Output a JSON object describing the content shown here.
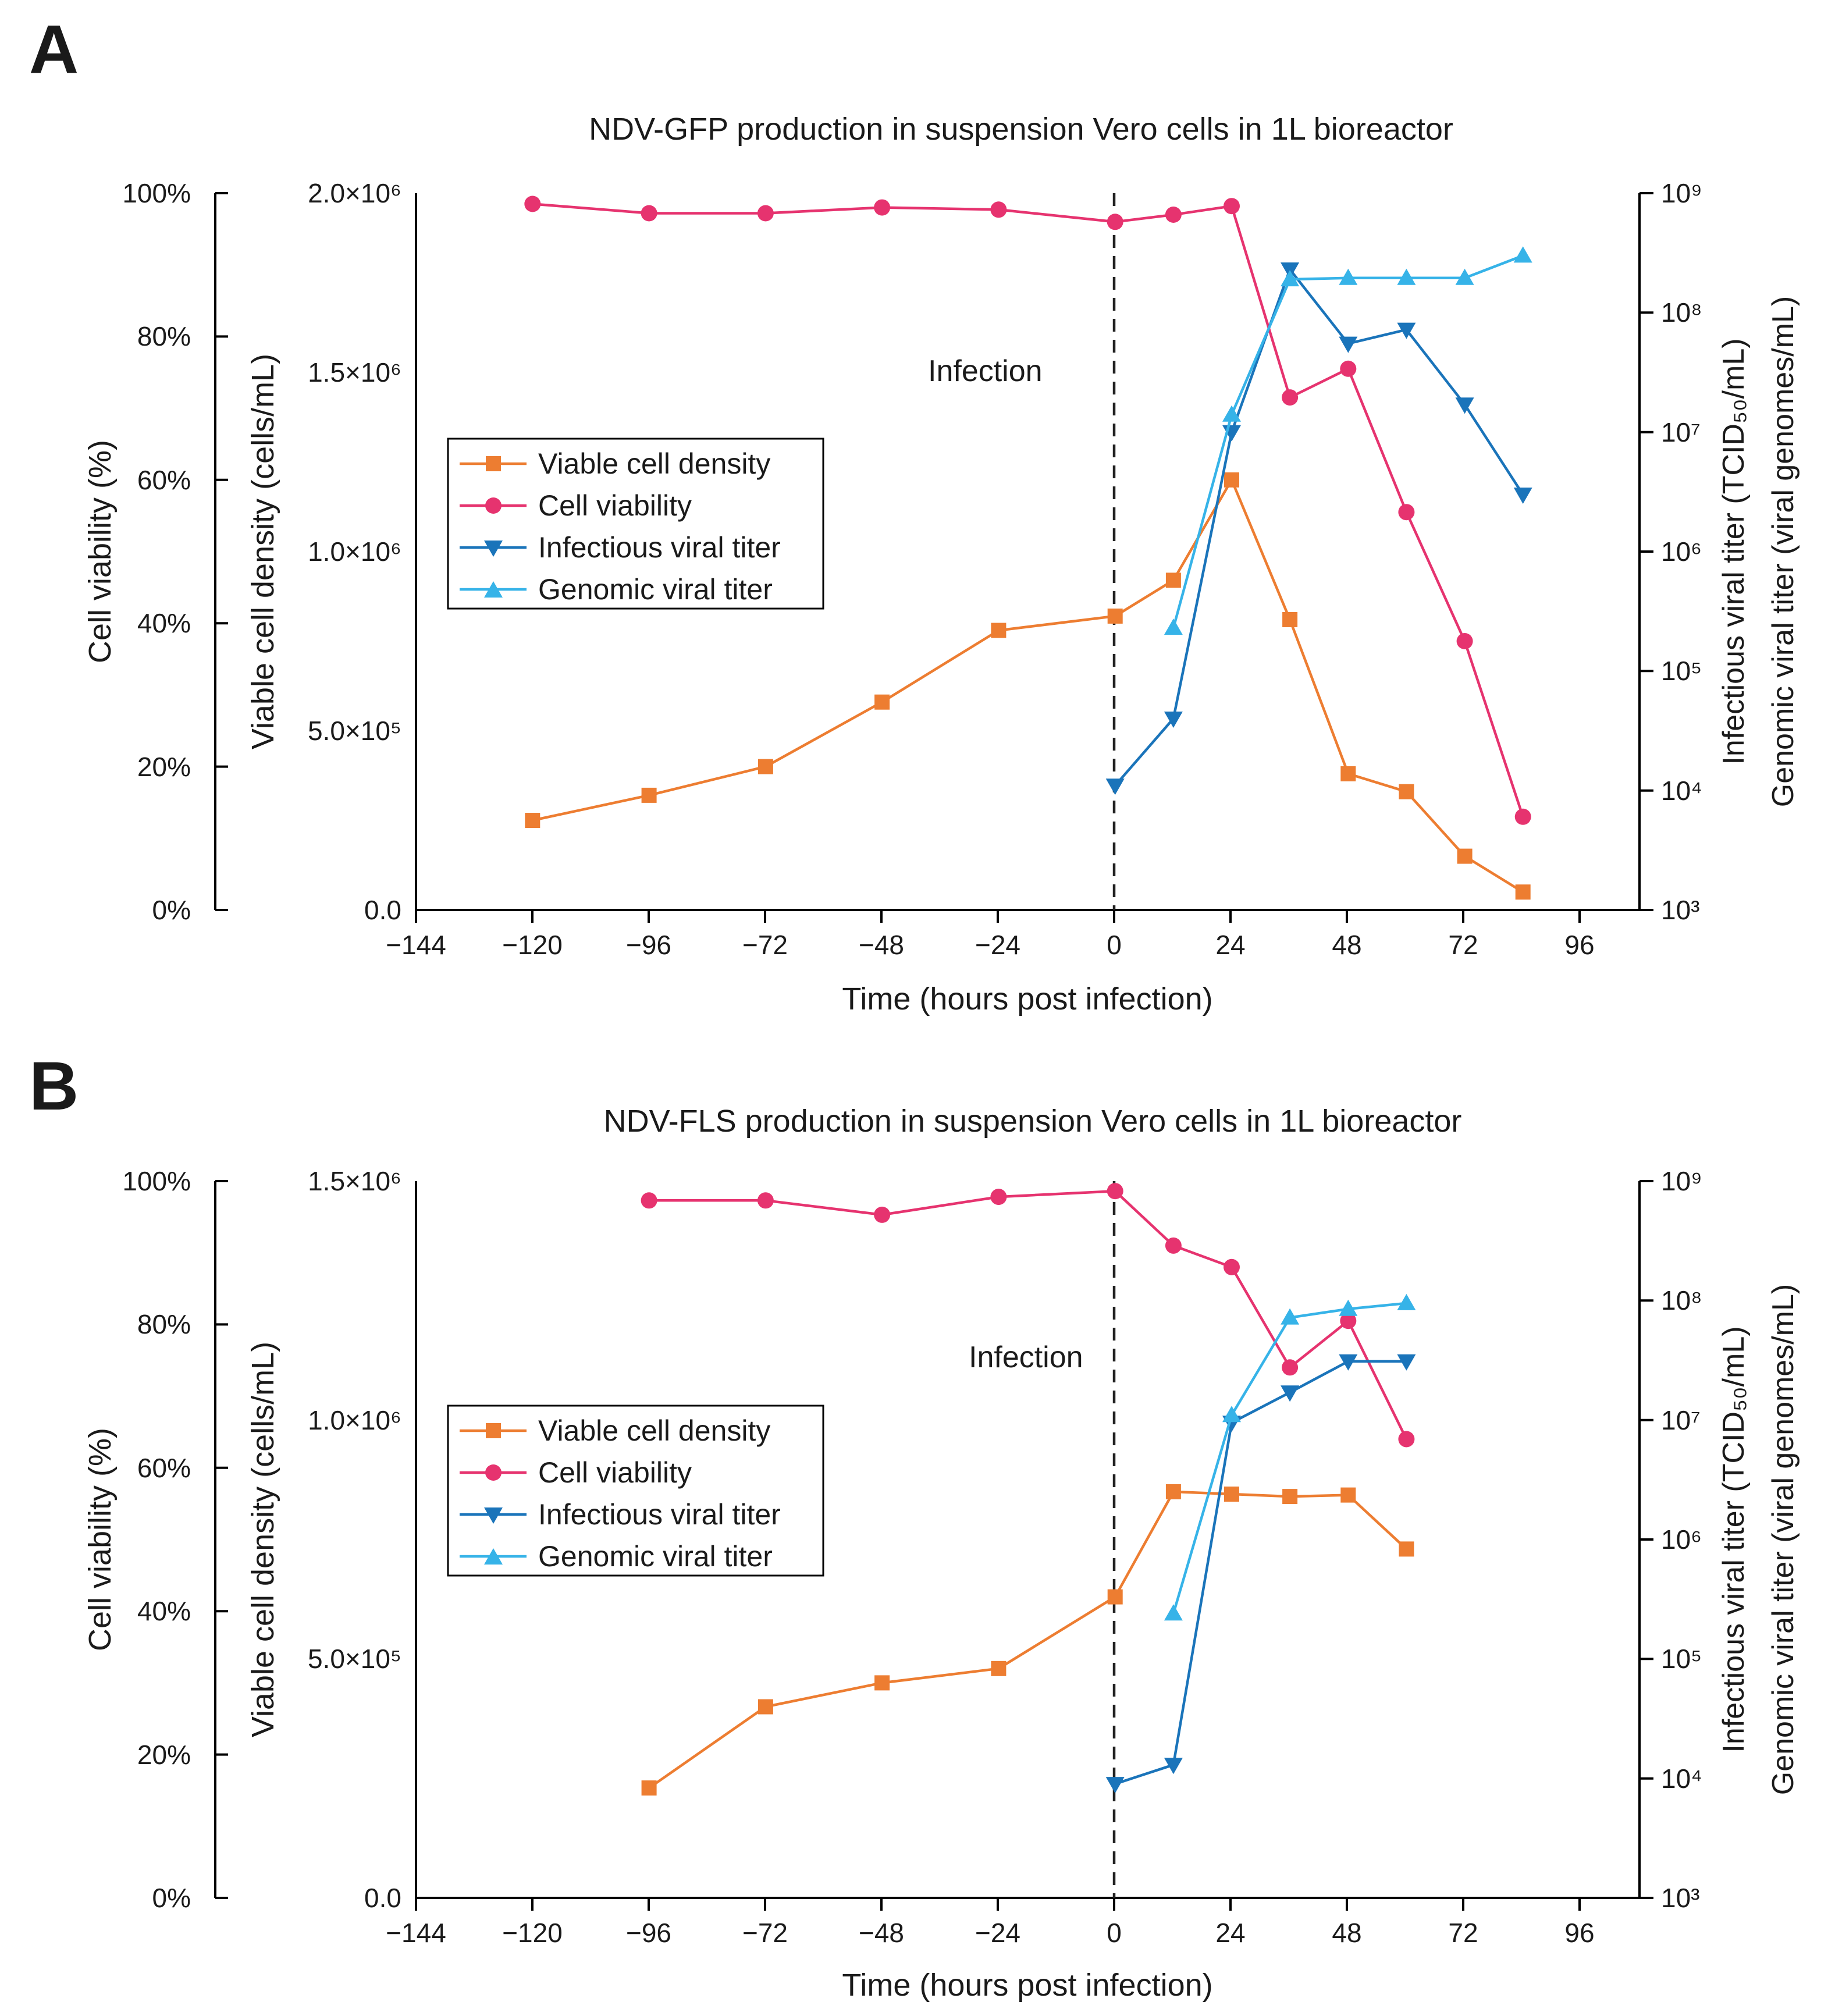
{
  "figure": {
    "panels": [
      {
        "panel_letter": "A",
        "title": "NDV-GFP production in suspension Vero cells in 1L bioreactor",
        "axis_left_outer": {
          "label": "Cell viability (%)",
          "ticks": [
            "0%",
            "20%",
            "40%",
            "60%",
            "80%",
            "100%"
          ]
        },
        "axis_left_inner": {
          "label": "Viable cell density (cells/mL)",
          "ticks": [
            "0.0",
            "5.0×10⁵",
            "1.0×10⁶",
            "1.5×10⁶",
            "2.0×10⁶"
          ]
        },
        "axis_right": {
          "label_line1": "Infectious viral titer (TCID₅₀/mL)",
          "label_line2": "Genomic viral titer (viral genomes/mL)",
          "ticks": [
            "10³",
            "10⁴",
            "10⁵",
            "10⁶",
            "10⁷",
            "10⁸",
            "10⁹"
          ]
        },
        "x_axis": {
          "label": "Time (hours post infection)",
          "ticks": [
            "−144",
            "−120",
            "−96",
            "−72",
            "−48",
            "−24",
            "0",
            "24",
            "48",
            "72",
            "96"
          ]
        },
        "annotation": "Infection",
        "legend": [
          "Viable cell density",
          "Cell viability",
          "Infectious viral titer",
          "Genomic viral titer"
        ]
      },
      {
        "panel_letter": "B",
        "title": "NDV-FLS production in suspension Vero cells in 1L bioreactor",
        "axis_left_outer": {
          "label": "Cell viability (%)",
          "ticks": [
            "0%",
            "20%",
            "40%",
            "60%",
            "80%",
            "100%"
          ]
        },
        "axis_left_inner": {
          "label": "Viable cell density (cells/mL)",
          "ticks": [
            "0.0",
            "5.0×10⁵",
            "1.0×10⁶",
            "1.5×10⁶"
          ]
        },
        "axis_right": {
          "label_line1": "Infectious viral titer (TCID₅₀/mL)",
          "label_line2": "Genomic viral titer (viral genomes/mL)",
          "ticks": [
            "10³",
            "10⁴",
            "10⁵",
            "10⁶",
            "10⁷",
            "10⁸",
            "10⁹"
          ]
        },
        "x_axis": {
          "label": "Time (hours post infection)",
          "ticks": [
            "−144",
            "−120",
            "−96",
            "−72",
            "−48",
            "−24",
            "0",
            "24",
            "48",
            "72",
            "96"
          ]
        },
        "annotation": "Infection",
        "legend": [
          "Viable cell density",
          "Cell viability",
          "Infectious viral titer",
          "Genomic viral titer"
        ]
      }
    ]
  },
  "chart_data": [
    {
      "type": "line",
      "title": "NDV-GFP production in suspension Vero cells in 1L bioreactor",
      "xlabel": "Time (hours post infection)",
      "xlim": [
        -144,
        108
      ],
      "xticks": [
        -144,
        -120,
        -96,
        -72,
        -48,
        -24,
        0,
        24,
        48,
        72,
        96
      ],
      "vline_x": 0,
      "annotation": "Infection",
      "axes": {
        "viability": {
          "label": "Cell viability (%)",
          "ylim": [
            0,
            100
          ],
          "scale": "linear"
        },
        "density": {
          "label": "Viable cell density (cells/mL)",
          "ylim": [
            0,
            2000000
          ],
          "scale": "linear"
        },
        "titer": {
          "label": "Infectious viral titer (TCID50/mL) / Genomic viral titer (viral genomes/mL)",
          "ylim": [
            1000,
            1000000000
          ],
          "scale": "log"
        }
      },
      "series": [
        {
          "name": "Viable cell density",
          "axis": "density",
          "color": "#ED7D31",
          "marker": "square",
          "x": [
            -120,
            -96,
            -72,
            -48,
            -24,
            0,
            12,
            24,
            36,
            48,
            60,
            72,
            84
          ],
          "values": [
            250000,
            320000,
            400000,
            580000,
            780000,
            820000,
            920000,
            1200000,
            810000,
            380000,
            330000,
            150000,
            50000
          ]
        },
        {
          "name": "Cell viability",
          "axis": "viability",
          "color": "#E6336F",
          "marker": "circle",
          "x": [
            -120,
            -96,
            -72,
            -48,
            -24,
            0,
            12,
            24,
            36,
            48,
            60,
            72,
            84
          ],
          "values": [
            98.5,
            97.2,
            97.2,
            98.0,
            97.7,
            96.0,
            97.0,
            98.2,
            71.5,
            75.5,
            55.5,
            37.5,
            13.0
          ]
        },
        {
          "name": "Infectious viral titer",
          "axis": "titer",
          "color": "#1A74BA",
          "marker": "triangle-down",
          "x": [
            0,
            12,
            24,
            36,
            48,
            60,
            72,
            84
          ],
          "values": [
            11000,
            40000,
            10000000,
            230000000,
            55000000,
            72000000,
            17000000,
            3000000
          ]
        },
        {
          "name": "Genomic viral titer",
          "axis": "titer",
          "color": "#36B3E8",
          "marker": "triangle-up",
          "x": [
            12,
            24,
            36,
            48,
            60,
            72,
            84
          ],
          "values": [
            230000,
            14000000,
            190000000,
            195000000,
            195000000,
            195000000,
            300000000
          ]
        }
      ],
      "legend_position": "center-left"
    },
    {
      "type": "line",
      "title": "NDV-FLS production in suspension Vero cells in 1L bioreactor",
      "xlabel": "Time (hours post infection)",
      "xlim": [
        -144,
        108
      ],
      "xticks": [
        -144,
        -120,
        -96,
        -72,
        -48,
        -24,
        0,
        24,
        48,
        72,
        96
      ],
      "vline_x": 0,
      "annotation": "Infection",
      "axes": {
        "viability": {
          "label": "Cell viability (%)",
          "ylim": [
            0,
            100
          ],
          "scale": "linear"
        },
        "density": {
          "label": "Viable cell density (cells/mL)",
          "ylim": [
            0,
            1500000
          ],
          "scale": "linear"
        },
        "titer": {
          "label": "Infectious viral titer (TCID50/mL) / Genomic viral titer (viral genomes/mL)",
          "ylim": [
            1000,
            1000000000
          ],
          "scale": "log"
        }
      },
      "series": [
        {
          "name": "Viable cell density",
          "axis": "density",
          "color": "#ED7D31",
          "marker": "square",
          "x": [
            -96,
            -72,
            -48,
            -24,
            0,
            12,
            24,
            36,
            48,
            60
          ],
          "values": [
            230000,
            400000,
            450000,
            480000,
            630000,
            850000,
            845000,
            840000,
            843000,
            730000
          ]
        },
        {
          "name": "Cell viability",
          "axis": "viability",
          "color": "#E6336F",
          "marker": "circle",
          "x": [
            -96,
            -72,
            -48,
            -24,
            0,
            12,
            24,
            36,
            48,
            60
          ],
          "values": [
            97.3,
            97.3,
            95.3,
            97.8,
            98.6,
            91.0,
            88.0,
            74.0,
            80.5,
            64.0
          ]
        },
        {
          "name": "Infectious viral titer",
          "axis": "titer",
          "color": "#1A74BA",
          "marker": "triangle-down",
          "x": [
            0,
            12,
            24,
            36,
            48,
            60
          ],
          "values": [
            9000,
            13000,
            9500000,
            17000000,
            31000000,
            31000000
          ]
        },
        {
          "name": "Genomic viral titer",
          "axis": "titer",
          "color": "#36B3E8",
          "marker": "triangle-up",
          "x": [
            12,
            24,
            36,
            48,
            60
          ],
          "values": [
            240000,
            11000000,
            72000000,
            85000000,
            95000000
          ]
        }
      ],
      "legend_position": "center-left"
    }
  ]
}
